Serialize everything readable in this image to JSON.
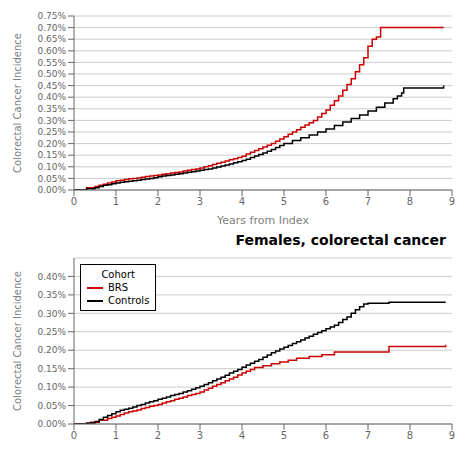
{
  "chart_data": [
    {
      "type": "step",
      "ylabel": "Colorectal Cancer Incidence",
      "xlabel": "Years from Index",
      "xlim": [
        0,
        9
      ],
      "ylim": [
        0,
        0.0075
      ],
      "xticks": [
        0,
        1,
        2,
        3,
        4,
        5,
        6,
        7,
        8,
        9
      ],
      "yticks": [
        {
          "value": 0,
          "label": "0.00%"
        },
        {
          "value": 0.0005,
          "label": "0.05%"
        },
        {
          "value": 0.001,
          "label": "0.10%"
        },
        {
          "value": 0.0015,
          "label": "0.15%"
        },
        {
          "value": 0.002,
          "label": "0.20%"
        },
        {
          "value": 0.0025,
          "label": "0.25%"
        },
        {
          "value": 0.003,
          "label": "0.30%"
        },
        {
          "value": 0.0035,
          "label": "0.35%"
        },
        {
          "value": 0.004,
          "label": "0.40%"
        },
        {
          "value": 0.0045,
          "label": "0.45%"
        },
        {
          "value": 0.005,
          "label": "0.50%"
        },
        {
          "value": 0.0055,
          "label": "0.55%"
        },
        {
          "value": 0.006,
          "label": "0.60%"
        },
        {
          "value": 0.0065,
          "label": "0.65%"
        },
        {
          "value": 0.007,
          "label": "0.70%"
        },
        {
          "value": 0.0075,
          "label": "0.75%"
        }
      ],
      "grid": true,
      "series": [
        {
          "color": "#cc0000",
          "x": [
            0,
            0.3,
            0.5,
            0.6,
            0.7,
            0.8,
            0.9,
            1.0,
            1.1,
            1.2,
            1.3,
            1.4,
            1.5,
            1.6,
            1.7,
            1.8,
            1.9,
            2.0,
            2.1,
            2.2,
            2.3,
            2.4,
            2.5,
            2.6,
            2.7,
            2.8,
            2.9,
            3.0,
            3.1,
            3.2,
            3.3,
            3.4,
            3.5,
            3.6,
            3.7,
            3.8,
            3.9,
            4.0,
            4.1,
            4.2,
            4.3,
            4.4,
            4.5,
            4.6,
            4.7,
            4.8,
            4.9,
            5.0,
            5.1,
            5.2,
            5.3,
            5.4,
            5.5,
            5.6,
            5.7,
            5.8,
            5.9,
            6.0,
            6.1,
            6.2,
            6.3,
            6.4,
            6.5,
            6.6,
            6.7,
            6.8,
            6.9,
            7.0,
            7.1,
            7.2,
            7.3,
            7.4,
            7.5,
            8.8
          ],
          "values": [
            0,
            0.0001,
            0.00015,
            0.0002,
            0.00025,
            0.0003,
            0.00035,
            0.0004,
            0.00042,
            0.00045,
            0.00048,
            0.0005,
            0.00052,
            0.00055,
            0.00058,
            0.0006,
            0.00062,
            0.00065,
            0.00068,
            0.0007,
            0.00073,
            0.00075,
            0.00078,
            0.00082,
            0.00085,
            0.00088,
            0.0009,
            0.00095,
            0.001,
            0.00105,
            0.0011,
            0.00115,
            0.0012,
            0.00125,
            0.0013,
            0.00135,
            0.0014,
            0.00145,
            0.00155,
            0.00163,
            0.0017,
            0.00178,
            0.00185,
            0.00193,
            0.002,
            0.0021,
            0.0022,
            0.0023,
            0.0024,
            0.0025,
            0.0026,
            0.0027,
            0.0028,
            0.0029,
            0.003,
            0.00315,
            0.0033,
            0.00345,
            0.00365,
            0.00385,
            0.00405,
            0.0043,
            0.00455,
            0.0048,
            0.0051,
            0.0054,
            0.0057,
            0.0062,
            0.0065,
            0.0066,
            0.007,
            0.007,
            0.007,
            0.007
          ]
        },
        {
          "color": "#000000",
          "x": [
            0,
            0.3,
            0.5,
            0.6,
            0.7,
            0.8,
            0.9,
            1.0,
            1.1,
            1.2,
            1.3,
            1.4,
            1.5,
            1.6,
            1.7,
            1.8,
            1.9,
            2.0,
            2.1,
            2.2,
            2.3,
            2.4,
            2.5,
            2.6,
            2.7,
            2.8,
            2.9,
            3.0,
            3.1,
            3.2,
            3.3,
            3.4,
            3.5,
            3.6,
            3.7,
            3.8,
            3.9,
            4.0,
            4.1,
            4.2,
            4.3,
            4.4,
            4.5,
            4.6,
            4.7,
            4.8,
            4.9,
            5.0,
            5.2,
            5.4,
            5.6,
            5.8,
            6.0,
            6.2,
            6.4,
            6.6,
            6.8,
            7.0,
            7.2,
            7.4,
            7.6,
            7.7,
            7.8,
            7.85,
            8.8
          ],
          "values": [
            0,
            5e-05,
            0.0001,
            0.00015,
            0.0002,
            0.00023,
            0.00027,
            0.0003,
            0.00033,
            0.00036,
            0.00038,
            0.0004,
            0.00042,
            0.00045,
            0.00047,
            0.0005,
            0.00053,
            0.00057,
            0.0006,
            0.00063,
            0.00065,
            0.00068,
            0.0007,
            0.00073,
            0.00076,
            0.00079,
            0.00082,
            0.00085,
            0.00088,
            0.00091,
            0.00095,
            0.00099,
            0.00103,
            0.00108,
            0.00112,
            0.00117,
            0.00122,
            0.00127,
            0.00133,
            0.0014,
            0.00147,
            0.00153,
            0.0016,
            0.00167,
            0.00175,
            0.00183,
            0.00192,
            0.002,
            0.00213,
            0.00225,
            0.00237,
            0.0025,
            0.00263,
            0.00278,
            0.00293,
            0.00308,
            0.00323,
            0.0034,
            0.00357,
            0.00375,
            0.00393,
            0.00405,
            0.00418,
            0.0044,
            0.0045
          ]
        }
      ]
    },
    {
      "type": "step",
      "title": "Females, colorectal cancer",
      "ylabel": "Colorectal Cancer Incidence",
      "xlim": [
        0,
        9
      ],
      "ylim": [
        0,
        0.0045
      ],
      "xticks": [
        0,
        1,
        2,
        3,
        4,
        5,
        6,
        7,
        8,
        9
      ],
      "yticks": [
        {
          "value": 0,
          "label": "0.00%"
        },
        {
          "value": 0.0005,
          "label": "0.05%"
        },
        {
          "value": 0.001,
          "label": "0.10%"
        },
        {
          "value": 0.0015,
          "label": "0.15%"
        },
        {
          "value": 0.002,
          "label": "0.20%"
        },
        {
          "value": 0.0025,
          "label": "0.25%"
        },
        {
          "value": 0.003,
          "label": "0.30%"
        },
        {
          "value": 0.0035,
          "label": "0.35%"
        },
        {
          "value": 0.004,
          "label": "0.40%"
        }
      ],
      "grid": true,
      "legend": "upper left",
      "legend_title": "Cohort",
      "series": [
        {
          "name": "BRS",
          "color": "#cc0000",
          "x": [
            0,
            0.4,
            0.6,
            0.8,
            0.9,
            1.0,
            1.1,
            1.2,
            1.3,
            1.4,
            1.5,
            1.6,
            1.7,
            1.8,
            1.9,
            2.0,
            2.1,
            2.2,
            2.3,
            2.4,
            2.5,
            2.6,
            2.7,
            2.8,
            2.9,
            3.0,
            3.1,
            3.2,
            3.3,
            3.4,
            3.5,
            3.6,
            3.7,
            3.8,
            3.9,
            4.0,
            4.1,
            4.2,
            4.3,
            4.5,
            4.7,
            4.9,
            5.1,
            5.3,
            5.6,
            5.9,
            6.2,
            6.4,
            6.6,
            6.7,
            6.8,
            6.9,
            7.0,
            7.1,
            7.5,
            8.85
          ],
          "values": [
            0,
            5e-05,
            0.0001,
            0.00015,
            0.00018,
            0.00022,
            0.00026,
            0.0003,
            0.00033,
            0.00035,
            0.00038,
            0.00042,
            0.00045,
            0.00048,
            0.0005,
            0.00053,
            0.00057,
            0.0006,
            0.00063,
            0.00067,
            0.0007,
            0.00073,
            0.00077,
            0.0008,
            0.00083,
            0.00087,
            0.00092,
            0.00097,
            0.00102,
            0.00107,
            0.00112,
            0.00117,
            0.00122,
            0.00127,
            0.00133,
            0.00138,
            0.00143,
            0.00148,
            0.00153,
            0.00158,
            0.00163,
            0.00168,
            0.00173,
            0.00178,
            0.00183,
            0.00188,
            0.00195,
            0.00195,
            0.00195,
            0.00195,
            0.00195,
            0.00195,
            0.00195,
            0.00195,
            0.0021,
            0.00215
          ]
        },
        {
          "name": "Controls",
          "color": "#000000",
          "x": [
            0,
            0.3,
            0.5,
            0.6,
            0.7,
            0.8,
            0.9,
            1.0,
            1.1,
            1.2,
            1.3,
            1.4,
            1.5,
            1.6,
            1.7,
            1.8,
            1.9,
            2.0,
            2.1,
            2.2,
            2.3,
            2.4,
            2.5,
            2.6,
            2.7,
            2.8,
            2.9,
            3.0,
            3.1,
            3.2,
            3.3,
            3.4,
            3.5,
            3.6,
            3.7,
            3.8,
            3.9,
            4.0,
            4.1,
            4.2,
            4.3,
            4.4,
            4.5,
            4.6,
            4.7,
            4.8,
            4.9,
            5.0,
            5.1,
            5.2,
            5.3,
            5.4,
            5.5,
            5.6,
            5.7,
            5.8,
            5.9,
            6.0,
            6.1,
            6.2,
            6.3,
            6.4,
            6.5,
            6.6,
            6.7,
            6.8,
            6.9,
            7.0,
            7.1,
            7.2,
            7.3,
            7.5,
            7.7,
            7.8,
            8.85
          ],
          "values": [
            0,
            3e-05,
            7e-05,
            0.00012,
            0.00018,
            0.00023,
            0.00028,
            0.00033,
            0.00037,
            0.0004,
            0.00043,
            0.00046,
            0.0005,
            0.00053,
            0.00057,
            0.0006,
            0.00063,
            0.00067,
            0.0007,
            0.00073,
            0.00077,
            0.0008,
            0.00083,
            0.00087,
            0.0009,
            0.00094,
            0.00098,
            0.00102,
            0.00107,
            0.00112,
            0.00117,
            0.00122,
            0.00127,
            0.00132,
            0.00138,
            0.00143,
            0.00148,
            0.00154,
            0.0016,
            0.00165,
            0.0017,
            0.00175,
            0.00181,
            0.00187,
            0.00193,
            0.00198,
            0.00203,
            0.00208,
            0.00213,
            0.00218,
            0.00223,
            0.00228,
            0.00233,
            0.00238,
            0.00243,
            0.00248,
            0.00253,
            0.00258,
            0.00263,
            0.00268,
            0.00275,
            0.00283,
            0.0029,
            0.003,
            0.0031,
            0.00318,
            0.00325,
            0.00327,
            0.00327,
            0.00327,
            0.00327,
            0.0033,
            0.0033,
            0.0033,
            0.0033
          ]
        }
      ]
    }
  ]
}
